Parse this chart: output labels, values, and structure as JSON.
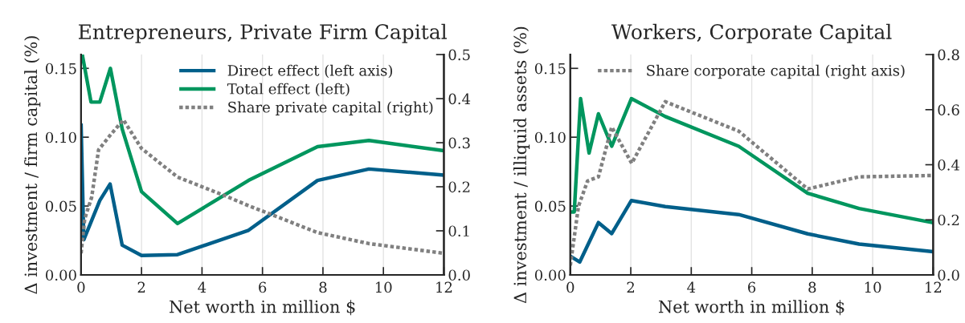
{
  "chart_data": [
    {
      "type": "line",
      "title": "Entrepreneurs, Private Firm Capital",
      "xlabel": "Net worth in million $",
      "ylabel": "Δ investment / firm capital (%)",
      "xlim": [
        0,
        12
      ],
      "xticks": [
        0,
        2,
        4,
        6,
        8,
        10,
        12
      ],
      "ylim": [
        0,
        0.16
      ],
      "yticks": [
        {
          "value": 0,
          "label": "0.00"
        },
        {
          "value": 0.05,
          "label": "0.05"
        },
        {
          "value": 0.1,
          "label": "0.10"
        },
        {
          "value": 0.15,
          "label": "0.15"
        }
      ],
      "y2lim": [
        0,
        0.5
      ],
      "y2ticks": [
        {
          "value": 0,
          "label": "0.0"
        },
        0.1,
        0.2,
        0.3,
        0.4,
        0.5
      ],
      "grid": "x",
      "legend": "top right",
      "series": [
        {
          "name": "Direct effect (left axis)",
          "color": "#005f8a",
          "line_style": "solid",
          "x": [
            0,
            0.09,
            0.62,
            0.96,
            1.36,
            2.0,
            3.19,
            5.54,
            7.82,
            9.52,
            12
          ],
          "values": [
            0.11,
            0.0255,
            0.054,
            0.066,
            0.0216,
            0.0141,
            0.0147,
            0.0324,
            0.0686,
            0.0769,
            0.0725
          ]
        },
        {
          "name": "Total effect (left)",
          "color": "#00965e",
          "line_style": "solid",
          "x": [
            0.04,
            0.33,
            0.62,
            0.97,
            1.36,
            2.0,
            3.19,
            5.54,
            7.82,
            9.52,
            12
          ],
          "values": [
            0.16,
            0.1255,
            0.1255,
            0.15,
            0.106,
            0.0604,
            0.0373,
            0.0686,
            0.0931,
            0.0976,
            0.0902
          ]
        },
        {
          "name": "Share private capital (right)",
          "color": "#808080",
          "line_style": "dotted",
          "axis": "y2",
          "x": [
            0,
            0.12,
            0.35,
            0.58,
            1.0,
            1.4,
            2.0,
            3.19,
            4.78,
            5.54,
            6.33,
            7.82,
            9.52,
            12
          ],
          "values": [
            0.049,
            0.127,
            0.176,
            0.284,
            0.32,
            0.352,
            0.287,
            0.222,
            0.179,
            0.157,
            0.136,
            0.096,
            0.071,
            0.049
          ]
        }
      ]
    },
    {
      "type": "line",
      "title": "Workers, Corporate Capital",
      "xlabel": "Net worth in million $",
      "ylabel": "Δ investment / illiquid assets (%)",
      "xlim": [
        0,
        12
      ],
      "xticks": [
        0,
        2,
        4,
        6,
        8,
        10,
        12
      ],
      "ylim": [
        0,
        0.16
      ],
      "yticks": [
        {
          "value": 0,
          "label": "0.00"
        },
        {
          "value": 0.05,
          "label": "0.05"
        },
        {
          "value": 0.1,
          "label": "0.10"
        },
        {
          "value": 0.15,
          "label": "0.15"
        }
      ],
      "y2lim": [
        0,
        0.8
      ],
      "y2ticks": [
        {
          "value": 0,
          "label": "0.0"
        },
        0.2,
        0.4,
        0.6,
        0.8
      ],
      "grid": "x",
      "legend": "top",
      "series": [
        {
          "color": "#005f8a",
          "line_style": "solid",
          "x": [
            0,
            0.31,
            0.93,
            1.37,
            2.02,
            3.14,
            5.57,
            7.85,
            9.55,
            12
          ],
          "values": [
            0.0136,
            0.0093,
            0.038,
            0.03,
            0.054,
            0.0496,
            0.0438,
            0.0298,
            0.0224,
            0.0169
          ]
        },
        {
          "color": "#00965e",
          "line_style": "solid",
          "x": [
            0,
            0.13,
            0.34,
            0.62,
            0.93,
            1.37,
            2.02,
            3.14,
            5.57,
            7.85,
            9.55,
            12
          ],
          "values": [
            0.0457,
            0.0457,
            0.128,
            0.0885,
            0.117,
            0.0934,
            0.128,
            0.115,
            0.0934,
            0.0593,
            0.0482,
            0.0379
          ]
        },
        {
          "name": "Share corporate capital (right axis)",
          "color": "#808080",
          "line_style": "dotted",
          "axis": "y2",
          "x": [
            0,
            0.27,
            0.57,
            0.93,
            1.37,
            2.03,
            3.14,
            5.57,
            7.85,
            9.55,
            12
          ],
          "values": [
            0.034,
            0.249,
            0.341,
            0.356,
            0.537,
            0.405,
            0.629,
            0.522,
            0.312,
            0.356,
            0.361
          ]
        }
      ]
    }
  ]
}
